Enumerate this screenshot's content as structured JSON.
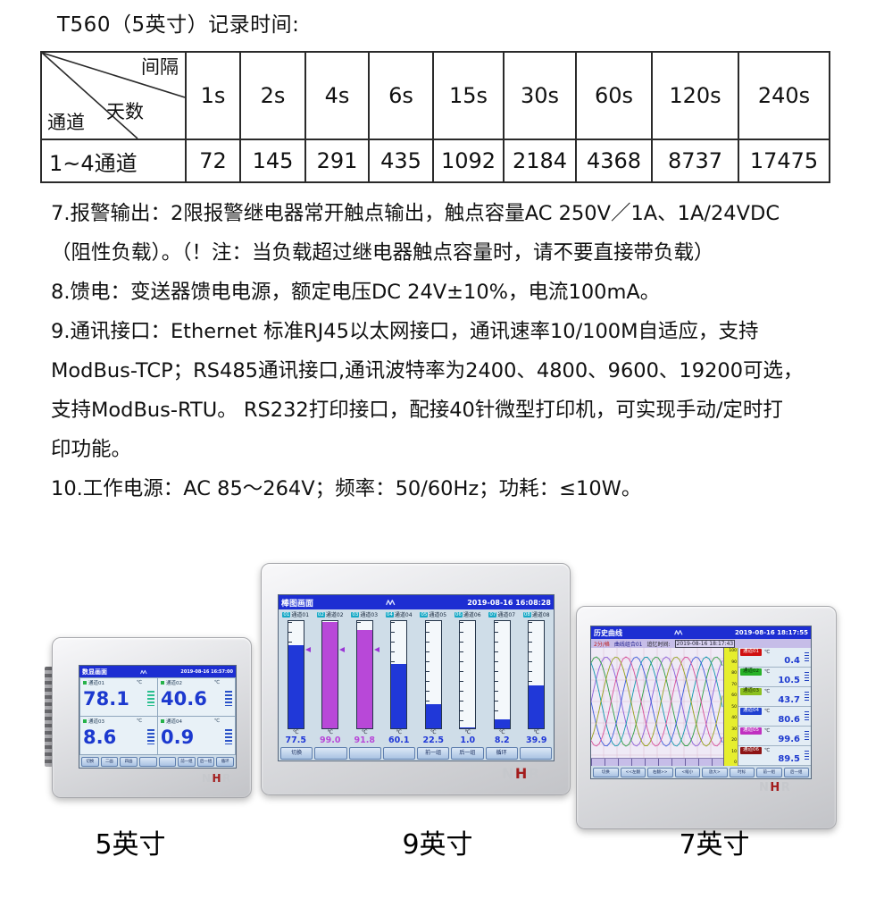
{
  "page": {
    "title": "T560（5英寸）记录时间:"
  },
  "record_table": {
    "corner": {
      "top": "间隔",
      "middle": "天数",
      "bottom": "通道"
    },
    "columns": [
      "1s",
      "2s",
      "4s",
      "6s",
      "15s",
      "30s",
      "60s",
      "120s",
      "240s"
    ],
    "rows": [
      {
        "label": "1~4通道",
        "values": [
          "72",
          "145",
          "291",
          "435",
          "1092",
          "2184",
          "4368",
          "8737",
          "17475"
        ]
      }
    ]
  },
  "specs": {
    "lines": [
      "7.报警输出：2限报警继电器常开触点输出，触点容量AC 250V／1A、1A/24VDC",
      "（阻性负载）。（！注：当负载超过继电器触点容量时，请不要直接带负载）",
      "8.馈电：变送器馈电电源，额定电压DC 24V±10%，电流100mA。",
      "9.通讯接口：Ethernet 标准RJ45以太网接口，通讯速率10/100M自适应，支持",
      "ModBus-TCP；RS485通讯接口,通讯波特率为2400、4800、9600、19200可选，",
      "支持ModBus-RTU。 RS232打印接口，配接40针微型打印机，可实现手动/定时打",
      "印功能。",
      "10.工作电源：AC 85～264V；频率：50/60Hz；功耗：≤10W。"
    ]
  },
  "brand": {
    "letters": [
      {
        "ch": "N",
        "color": "#c6c8cc"
      },
      {
        "ch": "H",
        "color": "#a31c1c"
      },
      {
        "ch": "R",
        "color": "#c6c8cc"
      }
    ]
  },
  "devices": [
    {
      "key": "d5",
      "caption": "5英寸",
      "screen_title": "数显画面",
      "datetime": "2019-08-16 16:57:00",
      "unit": "℃",
      "channels": [
        {
          "label": "通道01",
          "value": "78.1",
          "seg_color": "#2bbf8f"
        },
        {
          "label": "通道02",
          "value": "40.6",
          "seg_color": "#2a52c8"
        },
        {
          "label": "通道03",
          "value": "8.6",
          "seg_color": "#2a52c8"
        },
        {
          "label": "通道04",
          "value": "0.9",
          "seg_color": "#2a52c8"
        }
      ],
      "buttons": [
        "切换",
        "二画",
        "四画",
        "",
        "",
        "前一组",
        "后一组",
        "循环"
      ]
    },
    {
      "key": "d9",
      "caption": "9英寸",
      "screen_title": "棒图画面",
      "datetime": "2019-08-16 16:08:28",
      "unit": "℃",
      "channels": [
        {
          "num": "01",
          "label": "通道01",
          "value": "77.5",
          "pct": 77.5,
          "color": "#2038d8",
          "marker": true
        },
        {
          "num": "02",
          "label": "通道02",
          "value": "99.0",
          "pct": 99.0,
          "color": "#b848d8",
          "marker": true
        },
        {
          "num": "03",
          "label": "通道03",
          "value": "91.8",
          "pct": 91.8,
          "color": "#b848d8",
          "marker": true
        },
        {
          "num": "04",
          "label": "通道04",
          "value": "60.1",
          "pct": 60.1,
          "color": "#2038d8",
          "marker": false
        },
        {
          "num": "05",
          "label": "通道05",
          "value": "22.5",
          "pct": 22.5,
          "color": "#2038d8",
          "marker": false
        },
        {
          "num": "06",
          "label": "通道06",
          "value": "1.0",
          "pct": 1.0,
          "color": "#2038d8",
          "marker": false
        },
        {
          "num": "07",
          "label": "通道07",
          "value": "8.2",
          "pct": 8.2,
          "color": "#2038d8",
          "marker": false
        },
        {
          "num": "08",
          "label": "通道08",
          "value": "39.9",
          "pct": 39.9,
          "color": "#2038d8",
          "marker": false
        }
      ],
      "buttons": [
        "切换",
        "",
        "",
        "",
        "前一组",
        "后一组",
        "循环",
        ""
      ]
    },
    {
      "key": "d7",
      "caption": "7英寸",
      "screen_title": "历史曲线",
      "datetime": "2019-08-16 18:17:55",
      "unit": "℃",
      "subbar": {
        "scale": "2分/格",
        "group": "曲线组合01",
        "recall_label": "追忆时间:",
        "recall_time": "2019-08-16 18:17:43"
      },
      "axis_ticks": [
        "100",
        "90",
        "80",
        "70",
        "60",
        "50",
        "40",
        "30",
        "20",
        "10",
        "0"
      ],
      "curve_colors": [
        "#8a5fd8",
        "#2f9e44",
        "#1098ad",
        "#3b5bdb",
        "#d6509a",
        "#94a11c"
      ],
      "channels": [
        {
          "label": "通道01",
          "value": "0.4",
          "header_bg": "#d01010",
          "header_fg": "#ffffff"
        },
        {
          "label": "通道02",
          "value": "10.5",
          "header_bg": "#28b228",
          "header_fg": "#063006"
        },
        {
          "label": "通道03",
          "value": "43.7",
          "header_bg": "#8cc020",
          "header_fg": "#203000"
        },
        {
          "label": "通道04",
          "value": "80.6",
          "header_bg": "#2040d0",
          "header_fg": "#ffffff"
        },
        {
          "label": "通道05",
          "value": "99.6",
          "header_bg": "#c030c0",
          "header_fg": "#ffffff"
        },
        {
          "label": "通道06",
          "value": "89.5",
          "header_bg": "#8e1414",
          "header_fg": "#ffffff"
        }
      ],
      "buttons": [
        "切换",
        "<<左翻",
        "右翻>>",
        "<缩小",
        "放大>",
        "时标",
        "前一组",
        "后一组"
      ]
    }
  ]
}
